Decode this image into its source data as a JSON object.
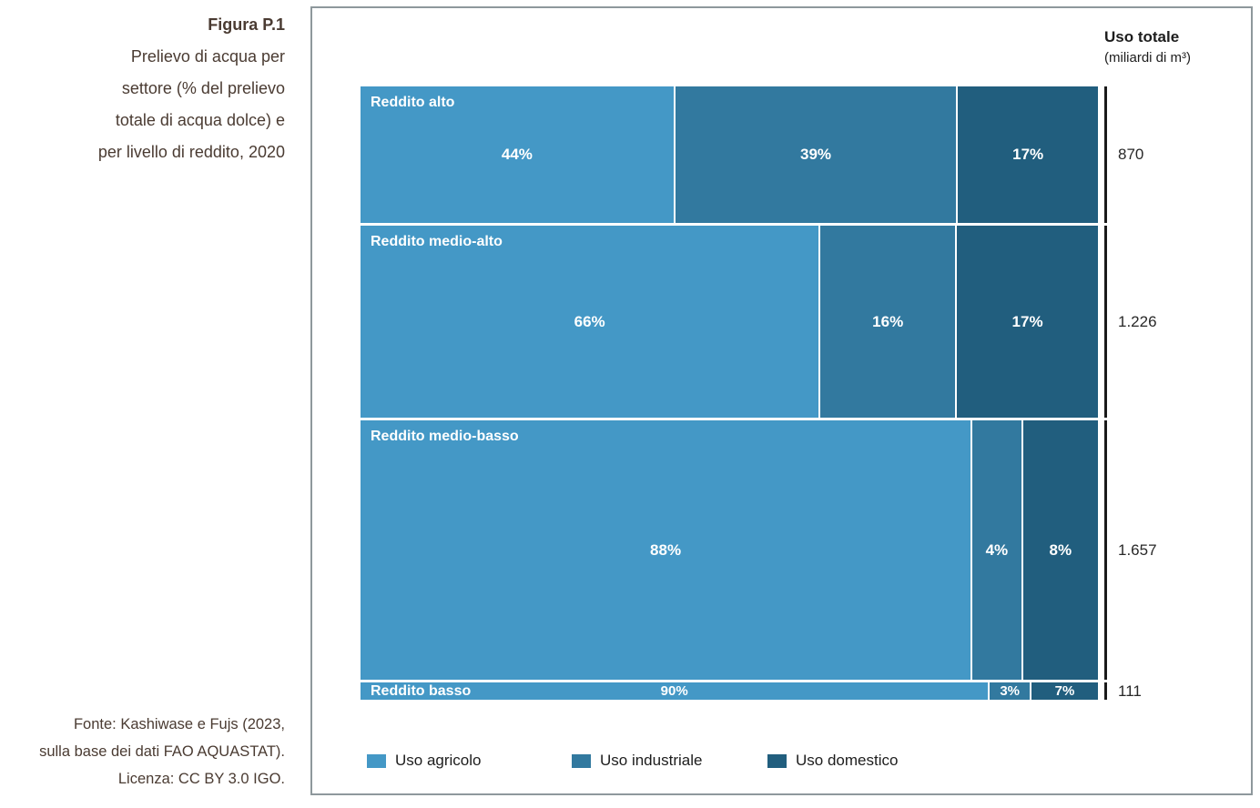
{
  "figure": {
    "label": "Figura P.1",
    "title_lines": [
      "Prelievo di acqua per",
      "settore (% del prelievo",
      "totale di acqua dolce) e",
      "per livello di reddito, 2020"
    ],
    "source_lines": [
      "Fonte: Kashiwase e Fujs (2023,",
      "sulla base dei dati FAO AQUASTAT).",
      "Licenza: CC BY 3.0 IGO."
    ]
  },
  "chart_data": {
    "type": "bar",
    "variant": "mosaic-horizontal-stacked-100pct",
    "title": "Prelievo di acqua per settore (% del prelievo totale di acqua dolce) e per livello di reddito, 2020",
    "unit_header": {
      "title": "Uso totale",
      "subtitle": "(miliardi di m³)"
    },
    "legend_position": "bottom-inside",
    "grid": false,
    "legend": [
      {
        "label": "Uso agricolo",
        "color": "#4498C6"
      },
      {
        "label": "Uso industriale",
        "color": "#32799F"
      },
      {
        "label": "Uso domestico",
        "color": "#215E7E"
      }
    ],
    "rows": [
      {
        "label": "Reddito alto",
        "total": 870,
        "total_label": "870",
        "segments": [
          {
            "name": "Uso agricolo",
            "pct": 44,
            "pct_label": "44%"
          },
          {
            "name": "Uso industriale",
            "pct": 39,
            "pct_label": "39%"
          },
          {
            "name": "Uso domestico",
            "pct": 17,
            "pct_label": "17%"
          }
        ]
      },
      {
        "label": "Reddito medio-alto",
        "total": 1226,
        "total_label": "1.226",
        "segments": [
          {
            "name": "Uso agricolo",
            "pct": 66,
            "pct_label": "66%"
          },
          {
            "name": "Uso industriale",
            "pct": 16,
            "pct_label": "16%"
          },
          {
            "name": "Uso domestico",
            "pct": 17,
            "pct_label": "17%"
          }
        ]
      },
      {
        "label": "Reddito medio-basso",
        "total": 1657,
        "total_label": "1.657",
        "segments": [
          {
            "name": "Uso agricolo",
            "pct": 88,
            "pct_label": "88%"
          },
          {
            "name": "Uso industriale",
            "pct": 4,
            "pct_label": "4%"
          },
          {
            "name": "Uso domestico",
            "pct": 8,
            "pct_label": "8%"
          }
        ]
      },
      {
        "label": "Reddito basso",
        "total": 111,
        "total_label": "111",
        "segments": [
          {
            "name": "Uso agricolo",
            "pct": 90,
            "pct_label": "90%"
          },
          {
            "name": "Uso industriale",
            "pct": 3,
            "pct_label": "3%"
          },
          {
            "name": "Uso domestico",
            "pct": 7,
            "pct_label": "7%"
          }
        ]
      }
    ],
    "colors": {
      "frame_border": "#8e989c",
      "tick": "#1a1a1a",
      "caption_text": "#4a3b32",
      "value_text": "#282828"
    }
  }
}
